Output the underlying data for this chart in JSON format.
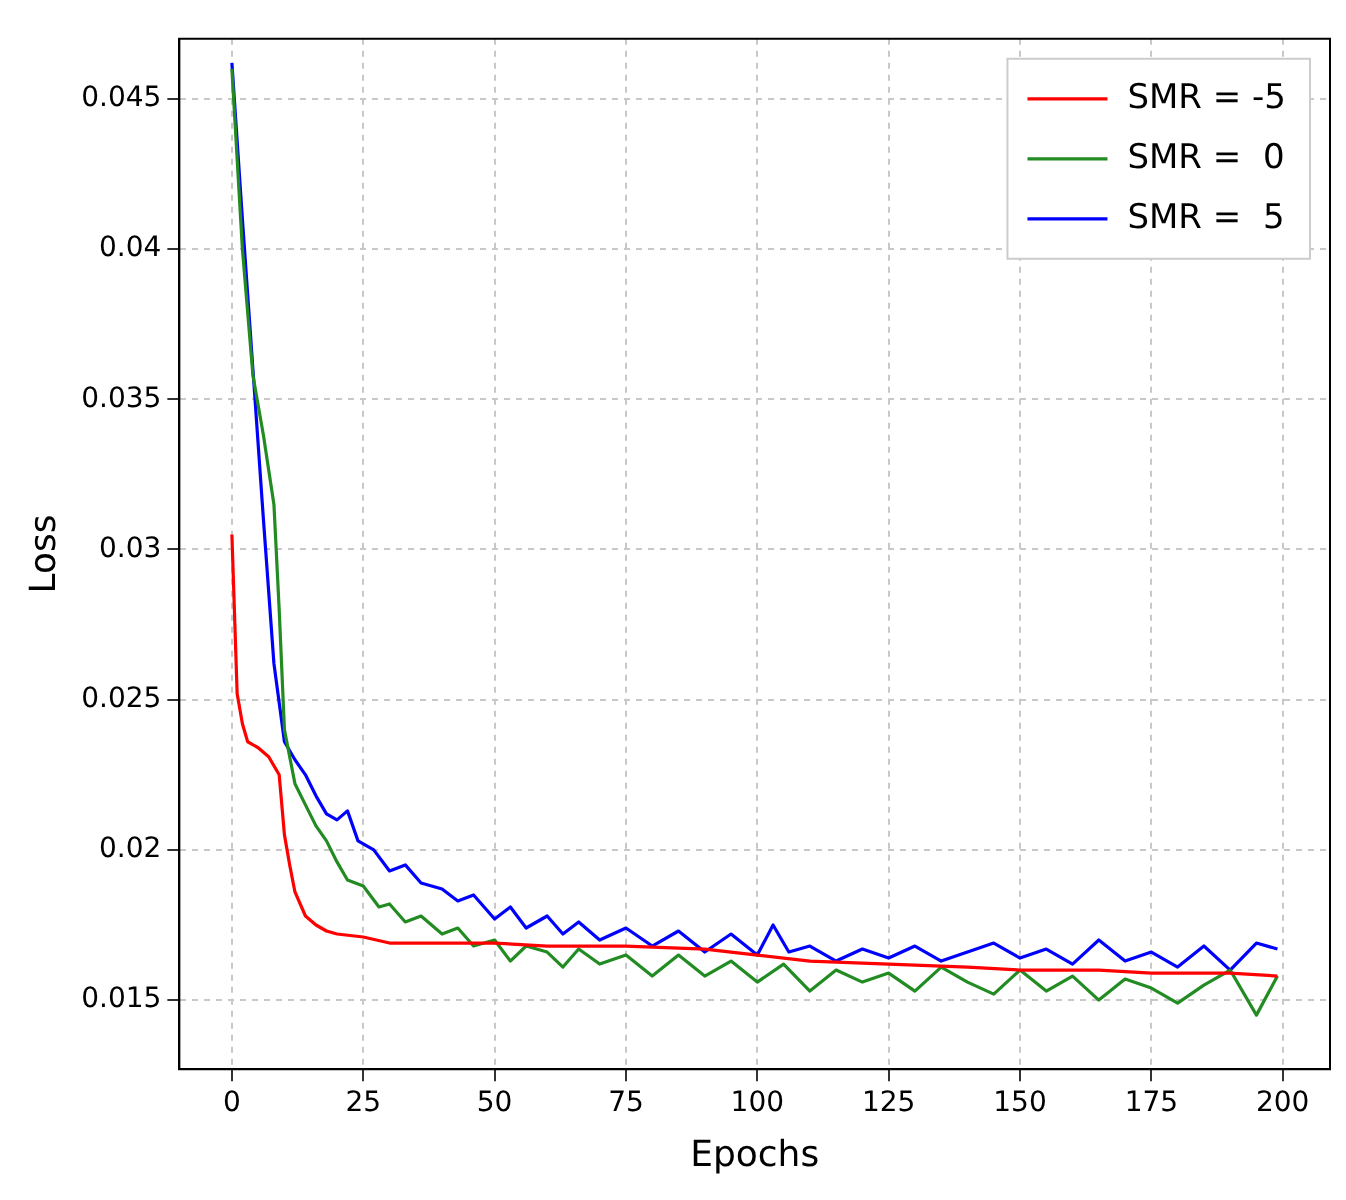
{
  "chart_data": {
    "type": "line",
    "xlabel": "Epochs",
    "ylabel": "Loss",
    "xlim": [
      -10,
      209
    ],
    "ylim": [
      0.0127,
      0.047
    ],
    "xticks": [
      0,
      25,
      50,
      75,
      100,
      125,
      150,
      175,
      200
    ],
    "yticks": [
      0.015,
      0.02,
      0.025,
      0.03,
      0.035,
      0.04,
      0.045
    ],
    "grid": true,
    "legend": "top right",
    "line_style": "solid",
    "marker": "none",
    "series": [
      {
        "name": "SMR = -5",
        "color": "#ff0000",
        "x": [
          0,
          1,
          2,
          3,
          5,
          7,
          9,
          10,
          11,
          12,
          14,
          16,
          18,
          20,
          25,
          30,
          40,
          50,
          60,
          75,
          90,
          100,
          110,
          125,
          140,
          150,
          165,
          175,
          190,
          199
        ],
        "values": [
          0.0305,
          0.0252,
          0.0242,
          0.0236,
          0.0234,
          0.0231,
          0.0225,
          0.0205,
          0.0195,
          0.0186,
          0.0178,
          0.0175,
          0.0173,
          0.0172,
          0.0171,
          0.0169,
          0.0169,
          0.0169,
          0.0168,
          0.0168,
          0.0167,
          0.0165,
          0.0163,
          0.0162,
          0.0161,
          0.016,
          0.016,
          0.0159,
          0.0159,
          0.0158
        ]
      },
      {
        "name": "SMR =  0",
        "color": "#228b22",
        "x": [
          0,
          2,
          4,
          6,
          8,
          9,
          10,
          12,
          14,
          16,
          18,
          20,
          22,
          25,
          28,
          30,
          33,
          36,
          40,
          43,
          46,
          50,
          53,
          56,
          60,
          63,
          66,
          70,
          75,
          80,
          85,
          90,
          95,
          100,
          105,
          110,
          115,
          120,
          125,
          130,
          135,
          140,
          145,
          150,
          155,
          160,
          165,
          170,
          175,
          180,
          185,
          190,
          195,
          199
        ],
        "values": [
          0.046,
          0.04,
          0.0358,
          0.0338,
          0.0315,
          0.028,
          0.024,
          0.0222,
          0.0215,
          0.0208,
          0.0203,
          0.0196,
          0.019,
          0.0188,
          0.0181,
          0.0182,
          0.0176,
          0.0178,
          0.0172,
          0.0174,
          0.0168,
          0.017,
          0.0163,
          0.0168,
          0.0166,
          0.0161,
          0.0167,
          0.0162,
          0.0165,
          0.0158,
          0.0165,
          0.0158,
          0.0163,
          0.0156,
          0.0162,
          0.0153,
          0.016,
          0.0156,
          0.0159,
          0.0153,
          0.0161,
          0.0156,
          0.0152,
          0.016,
          0.0153,
          0.0158,
          0.015,
          0.0157,
          0.0154,
          0.0149,
          0.0155,
          0.016,
          0.0145,
          0.0158
        ]
      },
      {
        "name": "SMR =  5",
        "color": "#0000ff",
        "x": [
          0,
          2,
          4,
          6,
          8,
          10,
          12,
          14,
          16,
          18,
          20,
          22,
          24,
          27,
          30,
          33,
          36,
          40,
          43,
          46,
          50,
          53,
          56,
          60,
          63,
          66,
          70,
          75,
          80,
          85,
          90,
          95,
          100,
          103,
          106,
          110,
          115,
          120,
          125,
          130,
          135,
          140,
          145,
          150,
          155,
          160,
          165,
          170,
          175,
          180,
          185,
          190,
          195,
          199
        ],
        "values": [
          0.0462,
          0.041,
          0.036,
          0.031,
          0.0262,
          0.0236,
          0.023,
          0.0225,
          0.0218,
          0.0212,
          0.021,
          0.0213,
          0.0203,
          0.02,
          0.0193,
          0.0195,
          0.0189,
          0.0187,
          0.0183,
          0.0185,
          0.0177,
          0.0181,
          0.0174,
          0.0178,
          0.0172,
          0.0176,
          0.017,
          0.0174,
          0.0168,
          0.0173,
          0.0166,
          0.0172,
          0.0165,
          0.0175,
          0.0166,
          0.0168,
          0.0163,
          0.0167,
          0.0164,
          0.0168,
          0.0163,
          0.0166,
          0.0169,
          0.0164,
          0.0167,
          0.0162,
          0.017,
          0.0163,
          0.0166,
          0.0161,
          0.0168,
          0.016,
          0.0169,
          0.0167
        ]
      }
    ]
  }
}
